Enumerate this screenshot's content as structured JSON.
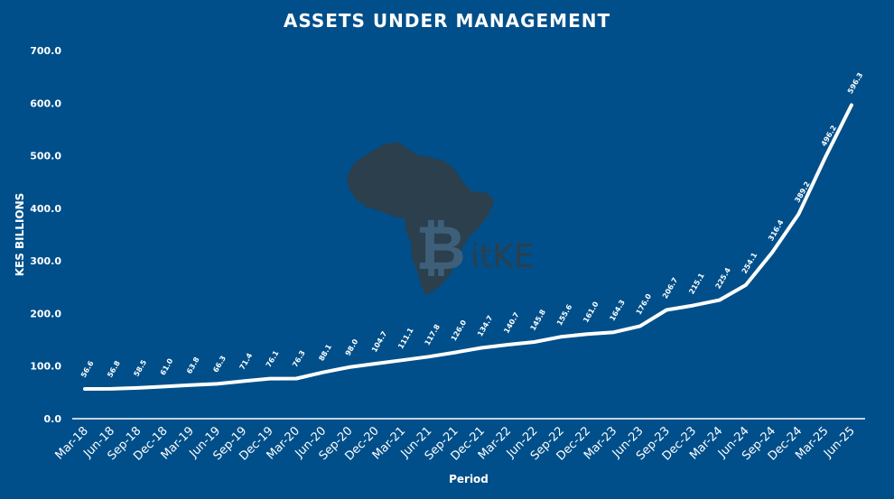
{
  "chart_data": {
    "type": "line",
    "title": "ASSETS UNDER MANAGEMENT",
    "xlabel": "Period",
    "ylabel": "KES BILLIONS",
    "ylim": [
      0,
      700
    ],
    "yticks": [
      "0.0",
      "100.0",
      "200.0",
      "300.0",
      "400.0",
      "500.0",
      "600.0",
      "700.0"
    ],
    "grid": false,
    "legend": "none",
    "colors": {
      "background": "#004f8a",
      "line": "#ffffff",
      "watermark": "#2b3f4d"
    },
    "categories": [
      "Mar-18",
      "Jun-18",
      "Sep-18",
      "Dec-18",
      "Mar-19",
      "Jun-19",
      "Sep-19",
      "Dec-19",
      "Mar-20",
      "Jun-20",
      "Sep-20",
      "Dec-20",
      "Mar-21",
      "Jun-21",
      "Sep-21",
      "Dec-21",
      "Mar-22",
      "Jun-22",
      "Sep-22",
      "Dec-22",
      "Mar-23",
      "Jun-23",
      "Sep-23",
      "Dec-23",
      "Mar-24",
      "Jun-24",
      "Sep-24",
      "Dec-24",
      "Mar-25",
      "Jun-25"
    ],
    "values": [
      56.6,
      56.8,
      58.5,
      61.0,
      63.8,
      66.3,
      71.4,
      76.1,
      76.3,
      88.1,
      98.0,
      104.7,
      111.1,
      117.8,
      126.0,
      134.7,
      140.7,
      145.8,
      155.6,
      161.0,
      164.3,
      176.0,
      206.7,
      215.1,
      225.4,
      254.1,
      316.4,
      389.2,
      496.2,
      596.3
    ],
    "data_labels": [
      "56.6",
      "56.8",
      "58.5",
      "61.0",
      "63.8",
      "66.3",
      "71.4",
      "76.1",
      "76.3",
      "88.1",
      "98.0",
      "104.7",
      "111.1",
      "117.8",
      "126.0",
      "134.7",
      "140.7",
      "145.8",
      "155.6",
      "161.0",
      "164.3",
      "176.0",
      "206.7",
      "215.1",
      "225.4",
      "254.1",
      "316.4",
      "389.2",
      "496.2",
      "596.3"
    ]
  },
  "watermark": {
    "text": "itKE",
    "icon": "africa-bitcoin-logo"
  }
}
